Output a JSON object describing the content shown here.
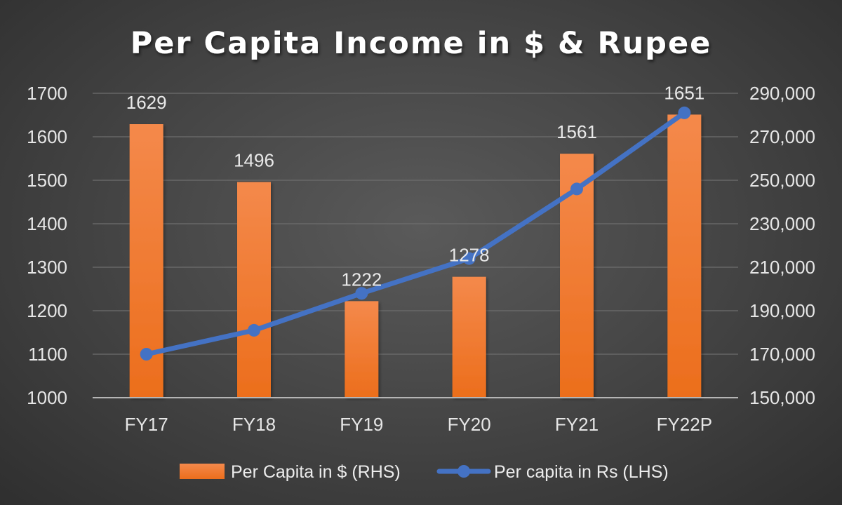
{
  "chart_data": {
    "type": "bar",
    "title": "Per Capita Income in $ & Rupee",
    "categories": [
      "FY17",
      "FY18",
      "FY19",
      "FY20",
      "FY21",
      "FY22P"
    ],
    "series": [
      {
        "name": "Per Capita in $ (RHS)",
        "type": "bar",
        "axis": "left",
        "color": "#f07b2a",
        "values": [
          1629,
          1496,
          1222,
          1278,
          1561,
          1651
        ],
        "data_labels": [
          "1629",
          "1496",
          "1222",
          "1278",
          "1561",
          "1651"
        ]
      },
      {
        "name": "Per capita in Rs (LHS)",
        "type": "line",
        "axis": "right",
        "color": "#4472c4",
        "values": [
          170000,
          181000,
          198000,
          214000,
          246000,
          281000
        ]
      }
    ],
    "y_left": {
      "ylim": [
        1000,
        1700
      ],
      "ticks": [
        "1000",
        "1100",
        "1200",
        "1300",
        "1400",
        "1500",
        "1600",
        "1700"
      ]
    },
    "y_right": {
      "ylim": [
        150000,
        290000
      ],
      "ticks": [
        "150,000",
        "170,000",
        "190,000",
        "210,000",
        "230,000",
        "250,000",
        "270,000",
        "290,000"
      ]
    },
    "grid": true,
    "legend_position": "bottom"
  }
}
